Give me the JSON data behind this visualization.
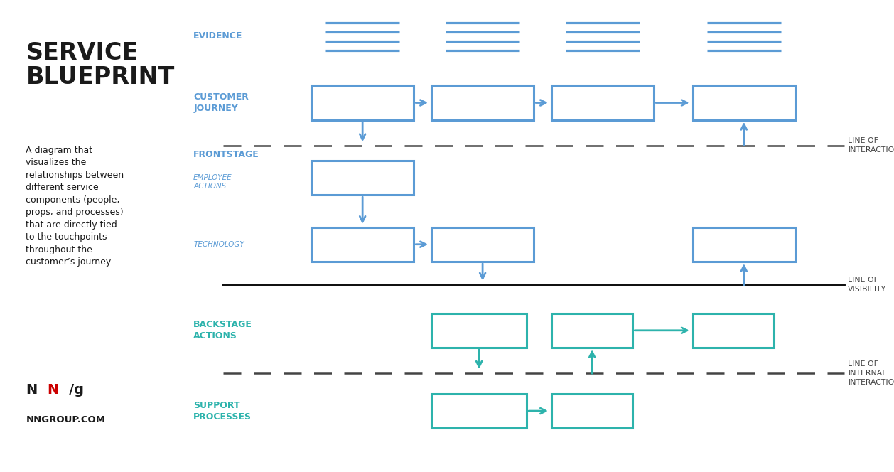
{
  "bg_left": "#dde8f4",
  "bg_right": "#ffffff",
  "outer_bg": "#ffffff",
  "title": "SERVICE\nBLUEPRINT",
  "description": "A diagram that\nvisualizes the\nrelationships between\ndifferent service\ncomponents (people,\nprops, and processes)\nthat are directly tied\nto the touchpoints\nthroughout the\ncustomer’s journey.",
  "logo_url": "NNGROUP.COM",
  "blue_color": "#5b9bd5",
  "teal_color": "#2db3ac",
  "evidence_label": "EVIDENCE",
  "customer_journey_label": "CUSTOMER\nJOURNEY",
  "frontstage_label": "FRONTSTAGE",
  "employee_actions_label": "EMPLOYEE\nACTIONS",
  "technology_label": "TECHNOLOGY",
  "backstage_label": "BACKSTAGE\nACTIONS",
  "support_label": "SUPPORT\nPROCESSES",
  "line_interaction_label": "LINE OF\nINTERACTION",
  "line_visibility_label": "LINE OF\nVISIBILITY",
  "line_internal_label": "LINE OF\nINTERNAL\nINTERACTION"
}
